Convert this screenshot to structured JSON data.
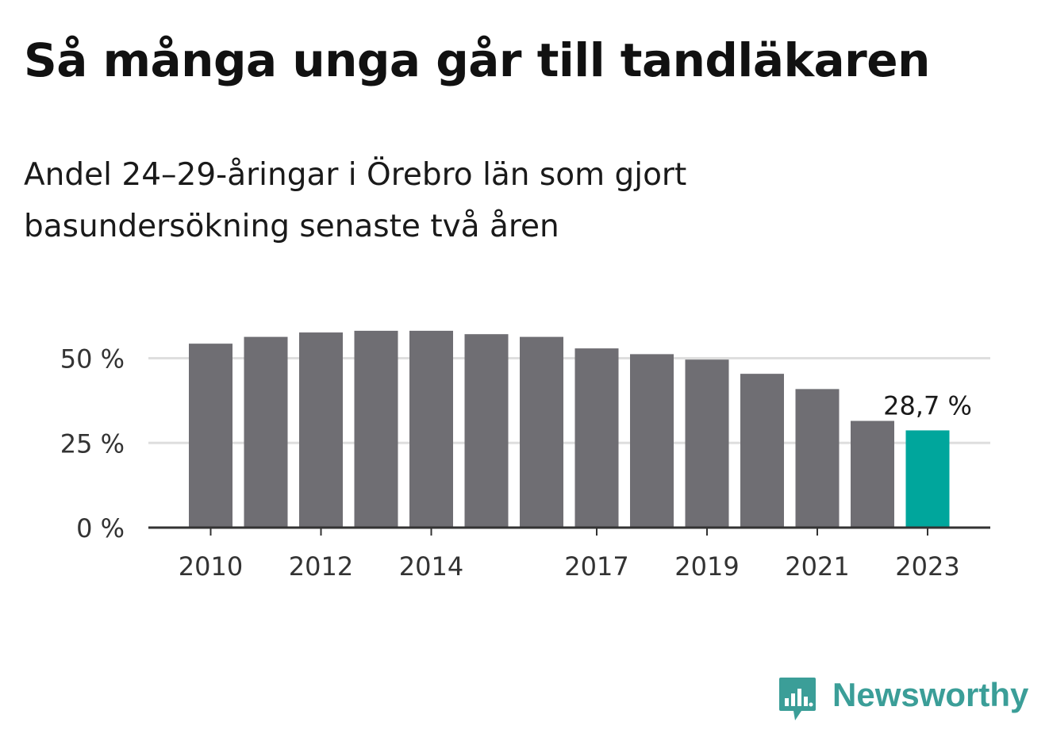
{
  "title": "Så många unga går till tandläkaren",
  "subtitle": "Andel 24–29-åringar i Örebro län som gjort basundersökning senaste två åren",
  "brand": {
    "name": "Newsworthy",
    "color": "#3b9e98",
    "logo_icon": "bar-chart-speech-bubble-icon"
  },
  "chart_data": {
    "type": "bar",
    "categories": [
      "2010",
      "2011",
      "2012",
      "2013",
      "2014",
      "2015",
      "2016",
      "2017",
      "2018",
      "2019",
      "2020",
      "2021",
      "2022",
      "2023"
    ],
    "values": [
      54.3,
      56.3,
      57.6,
      58.1,
      58.1,
      57.1,
      56.3,
      52.9,
      51.2,
      49.6,
      45.4,
      40.9,
      31.5,
      28.7
    ],
    "ylim": [
      0,
      60
    ],
    "yticks": [
      0,
      25,
      50
    ],
    "ytick_labels": [
      "0 %",
      "25 %",
      "50 %"
    ],
    "xtick_labels": [
      "2010",
      "2012",
      "2014",
      "2017",
      "2019",
      "2021",
      "2023"
    ],
    "highlight_index": 13,
    "highlight_label": "28,7 %",
    "grid": true,
    "colors": {
      "bar": "#6f6e73",
      "highlight": "#00a69c",
      "grid": "#dedede",
      "axis": "#333333"
    },
    "xlabel": "",
    "ylabel": ""
  }
}
